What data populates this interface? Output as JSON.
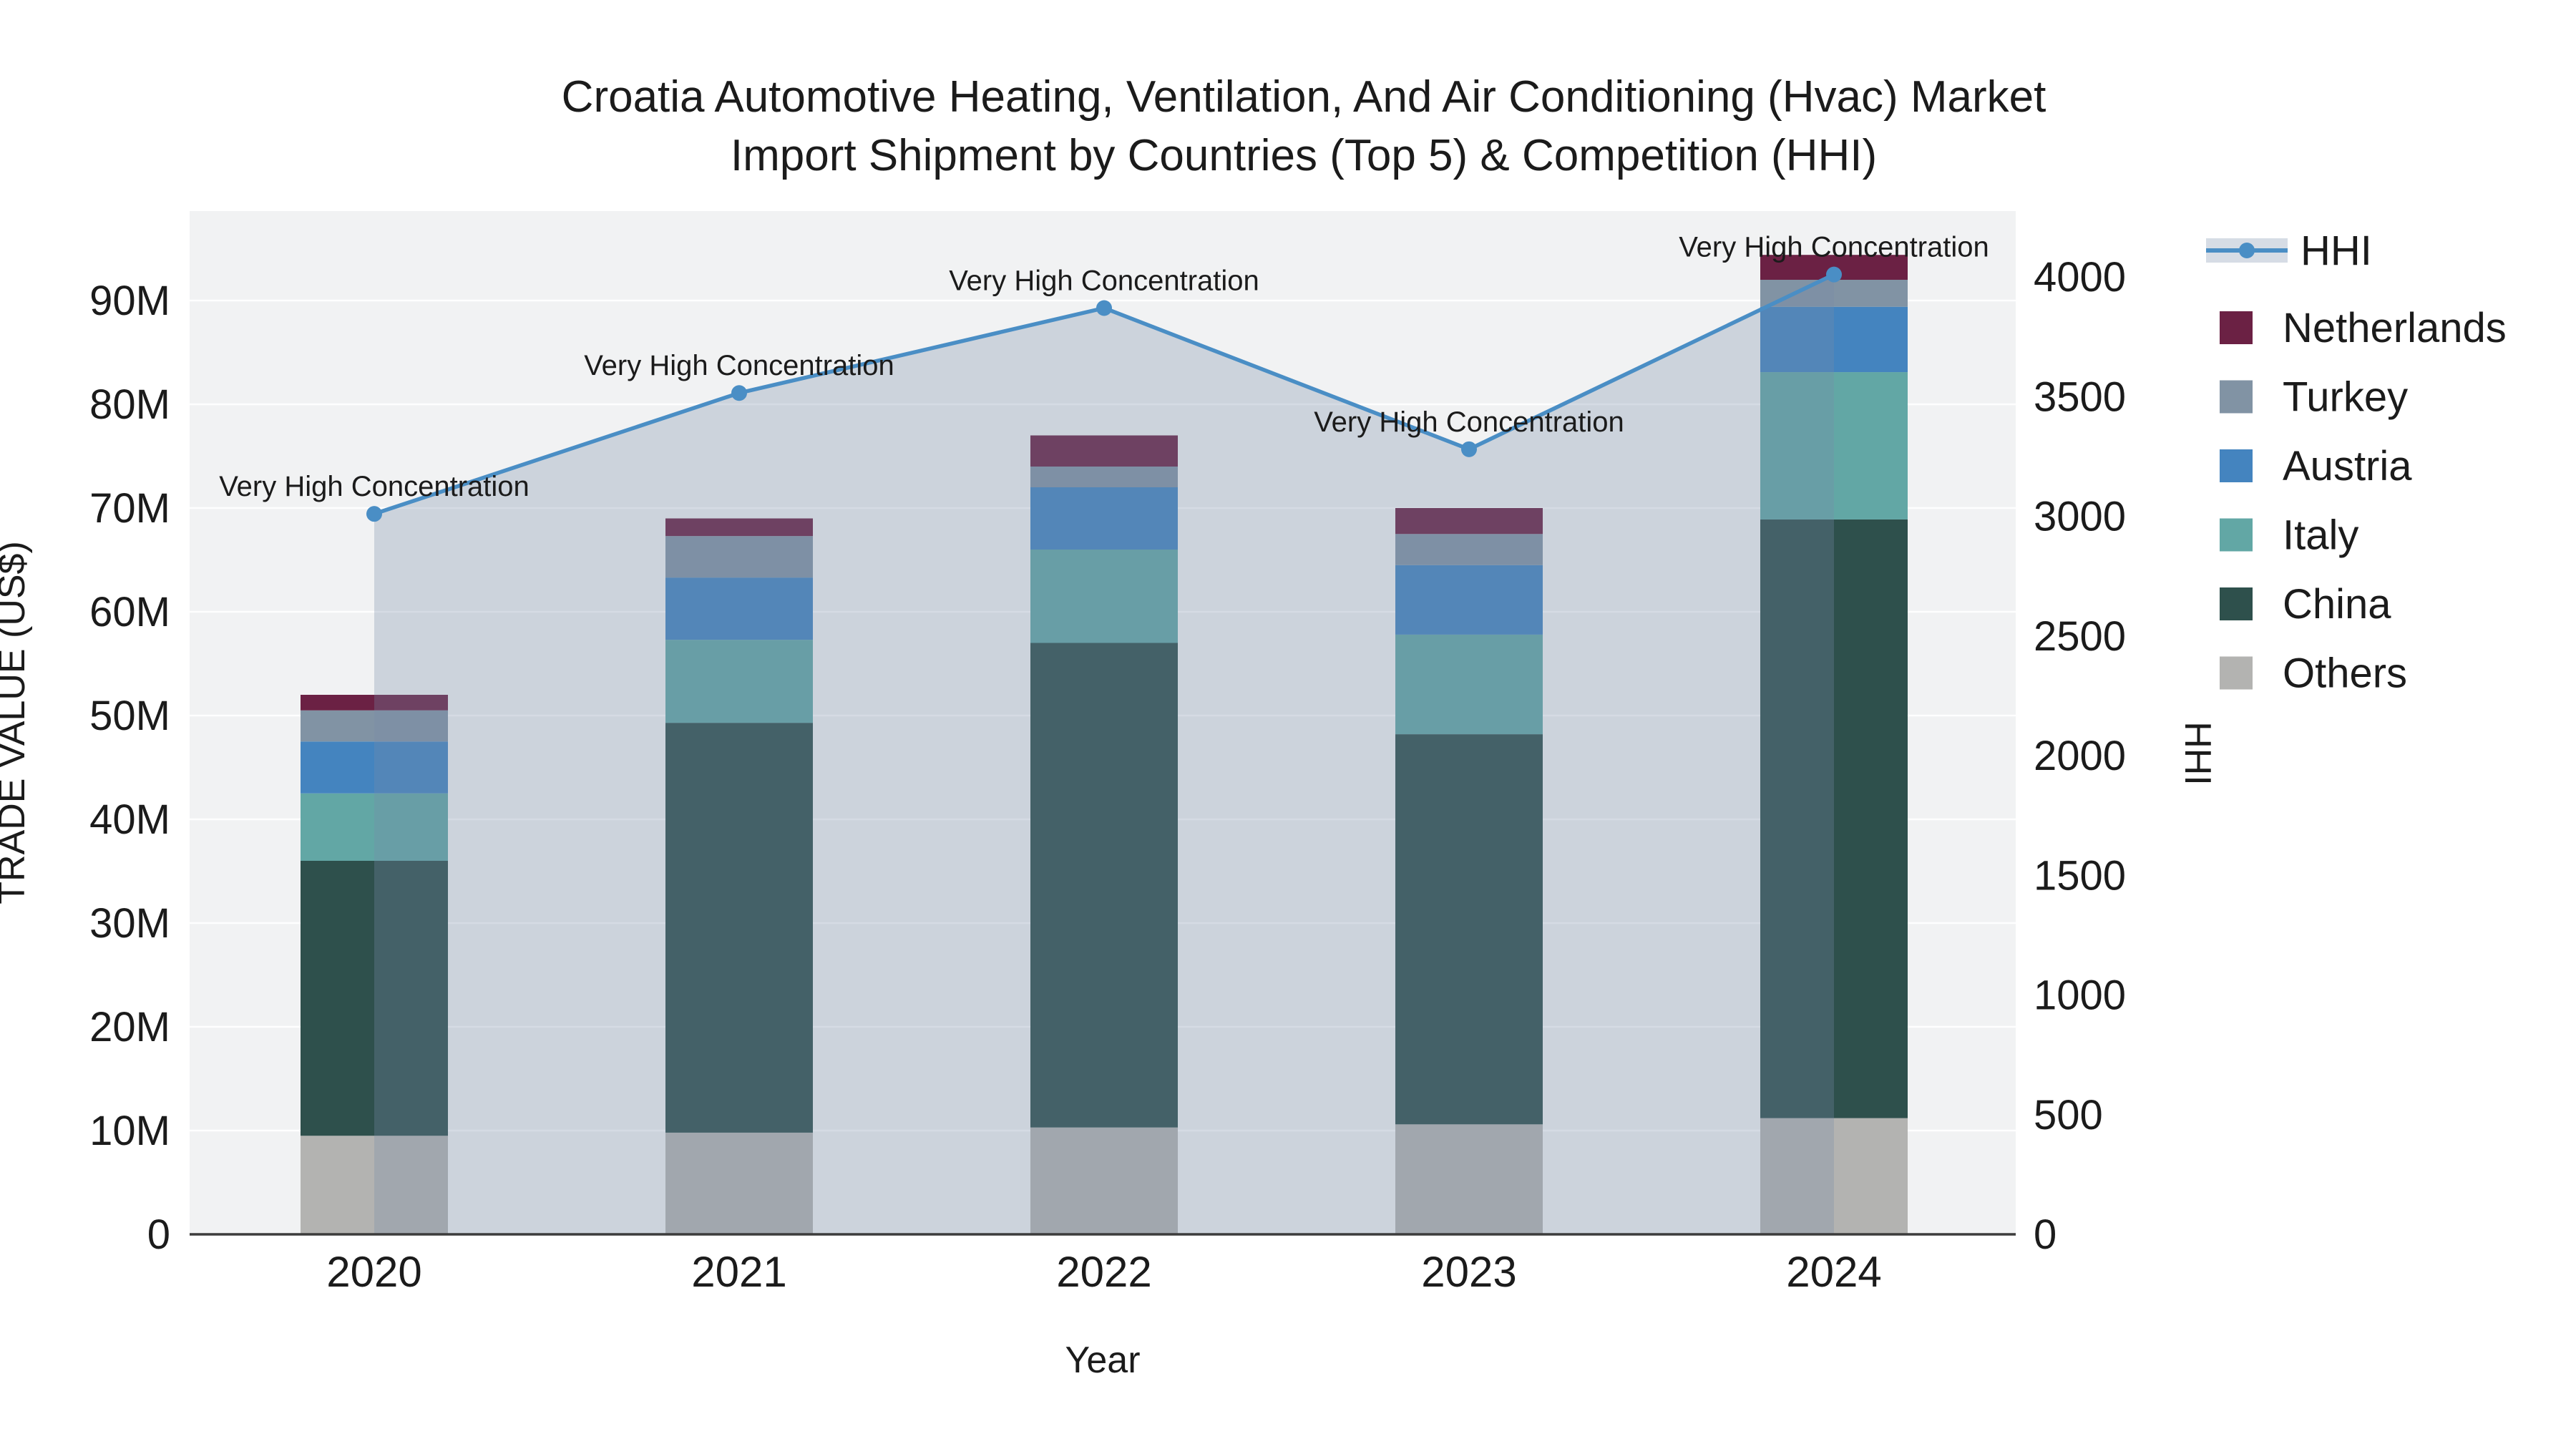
{
  "title": {
    "line1": "Croatia Automotive Heating, Ventilation, And Air Conditioning (Hvac) Market",
    "line2": "Import Shipment by Countries (Top 5) & Competition (HHI)"
  },
  "axes": {
    "x": {
      "title": "Year",
      "categories": [
        "2020",
        "2021",
        "2022",
        "2023",
        "2024"
      ]
    },
    "left": {
      "title": "TRADE VALUE (US$)",
      "ticks": [
        {
          "label": "0",
          "value": 0
        },
        {
          "label": "10M",
          "value": 10
        },
        {
          "label": "20M",
          "value": 20
        },
        {
          "label": "30M",
          "value": 30
        },
        {
          "label": "40M",
          "value": 40
        },
        {
          "label": "50M",
          "value": 50
        },
        {
          "label": "60M",
          "value": 60
        },
        {
          "label": "70M",
          "value": 70
        },
        {
          "label": "80M",
          "value": 80
        },
        {
          "label": "90M",
          "value": 90
        }
      ]
    },
    "right": {
      "title": "HHI",
      "ticks": [
        {
          "label": "0",
          "value": 0
        },
        {
          "label": "500",
          "value": 500
        },
        {
          "label": "1000",
          "value": 1000
        },
        {
          "label": "1500",
          "value": 1500
        },
        {
          "label": "2000",
          "value": 2000
        },
        {
          "label": "2500",
          "value": 2500
        },
        {
          "label": "3000",
          "value": 3000
        },
        {
          "label": "3500",
          "value": 3500
        },
        {
          "label": "4000",
          "value": 4000
        }
      ]
    }
  },
  "legend": {
    "items": [
      {
        "label": "HHI",
        "type": "line",
        "color": "#4a8ec5"
      },
      {
        "label": "Netherlands",
        "type": "square",
        "color": "#6b2144"
      },
      {
        "label": "Turkey",
        "type": "square",
        "color": "#8193a4"
      },
      {
        "label": "Austria",
        "type": "square",
        "color": "#4484bf"
      },
      {
        "label": "Italy",
        "type": "square",
        "color": "#62a7a5"
      },
      {
        "label": "China",
        "type": "square",
        "color": "#2e504c"
      },
      {
        "label": "Others",
        "type": "square",
        "color": "#b3b3b1"
      }
    ]
  },
  "chart_data": {
    "type": "bar+line",
    "title": "Croatia Automotive Heating, Ventilation, And Air Conditioning (Hvac) Market Import Shipment by Countries (Top 5) & Competition (HHI)",
    "xlabel": "Year",
    "ylabel": "TRADE VALUE (US$)",
    "y2label": "HHI",
    "categories": [
      "2020",
      "2021",
      "2022",
      "2023",
      "2024"
    ],
    "bar_value_unit": "millions of US$",
    "stack_order_bottom_to_top": [
      "Others",
      "China",
      "Italy",
      "Austria",
      "Turkey",
      "Netherlands"
    ],
    "series": [
      {
        "name": "Others",
        "color": "#b3b3b1",
        "values": [
          9.5,
          9.8,
          10.3,
          10.6,
          11.2
        ]
      },
      {
        "name": "China",
        "color": "#2e504c",
        "values": [
          26.5,
          39.5,
          46.7,
          37.6,
          57.7
        ]
      },
      {
        "name": "Italy",
        "color": "#62a7a5",
        "values": [
          6.5,
          8.0,
          9.0,
          9.6,
          14.2
        ]
      },
      {
        "name": "Austria",
        "color": "#4484bf",
        "values": [
          5.0,
          6.0,
          6.0,
          6.7,
          6.3
        ]
      },
      {
        "name": "Turkey",
        "color": "#8193a4",
        "values": [
          3.0,
          4.0,
          2.0,
          3.0,
          2.6
        ]
      },
      {
        "name": "Netherlands",
        "color": "#6b2144",
        "values": [
          1.5,
          1.7,
          3.0,
          2.5,
          2.4
        ]
      }
    ],
    "bar_totals_millions": [
      52.0,
      69.0,
      77.0,
      70.0,
      94.4
    ],
    "line_series": {
      "name": "HHI",
      "axis": "right",
      "color": "#4a8ec5",
      "fill": "tozeroy",
      "fill_color": "rgba(120,140,170,0.30)",
      "values": [
        3010,
        3515,
        3870,
        3280,
        4010
      ],
      "point_annotations": [
        "Very High Concentration",
        "Very High Concentration",
        "Very High Concentration",
        "Very High Concentration",
        "Very High Concentration"
      ]
    },
    "ylim_millions": [
      0,
      98.5
    ],
    "y2lim": [
      0,
      4275
    ],
    "grid": true,
    "plot_background": "#f1f2f3",
    "legend_position": "right"
  }
}
